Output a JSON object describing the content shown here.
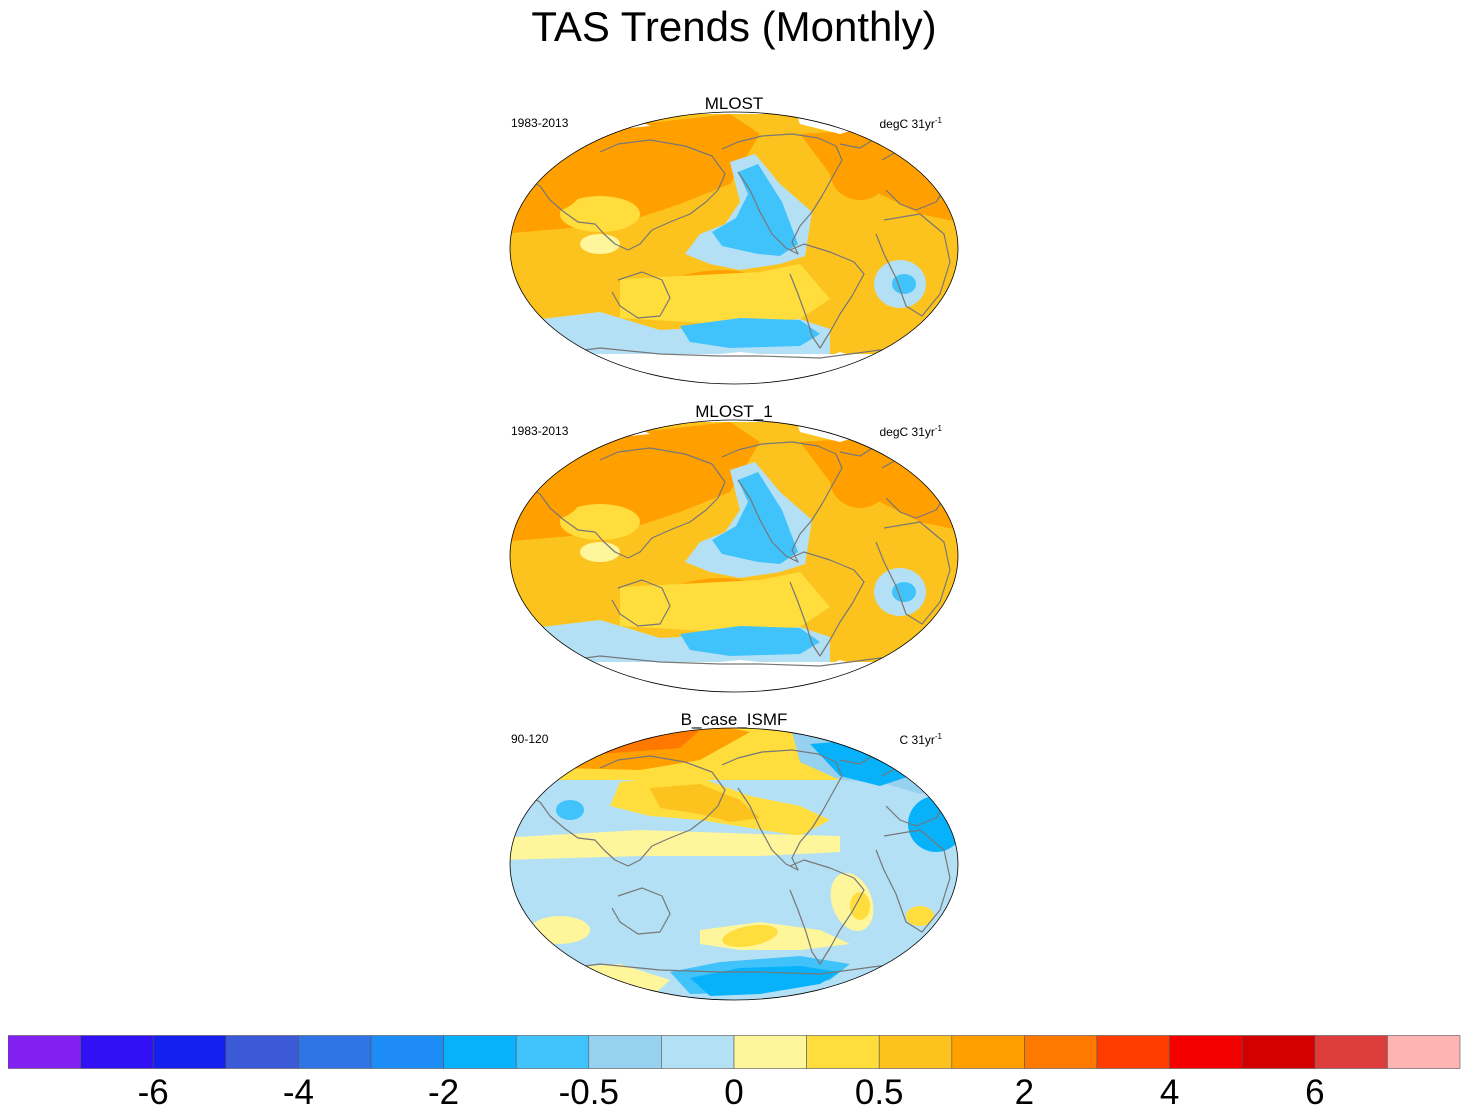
{
  "chart_data": {
    "type": "heatmap",
    "title": "TAS Trends (Monthly)",
    "panels": [
      {
        "id": "mlost",
        "title": "MLOST",
        "period": "1983-2013",
        "units": "degC 31yr",
        "units_sup": "-1",
        "pattern": "obs"
      },
      {
        "id": "mlost1",
        "title": "MLOST_1",
        "period": "1983-2013",
        "units": "degC 31yr",
        "units_sup": "-1",
        "pattern": "obs"
      },
      {
        "id": "bcase",
        "title": "B_case_ISMF",
        "period": "90-120",
        "units": "C 31yr",
        "units_sup": "-1",
        "pattern": "model"
      }
    ],
    "colorbar": {
      "colors": [
        "#8220f0",
        "#3110f5",
        "#1420f0",
        "#3c5ad8",
        "#2e74e6",
        "#1e8cf5",
        "#08b2fa",
        "#40c3fa",
        "#96d2f0",
        "#b4e0f5",
        "#fff59a",
        "#ffdd3c",
        "#fcc31e",
        "#ffa000",
        "#ff7800",
        "#ff3c00",
        "#f50000",
        "#d20000",
        "#dc3c3c",
        "#ffb4b4"
      ],
      "label_values": [
        "-6",
        "-4",
        "-2",
        "-0.5",
        "0",
        "0.5",
        "2",
        "4",
        "6"
      ],
      "label_after_box": [
        1,
        3,
        5,
        7,
        9,
        11,
        13,
        15,
        17
      ]
    }
  }
}
